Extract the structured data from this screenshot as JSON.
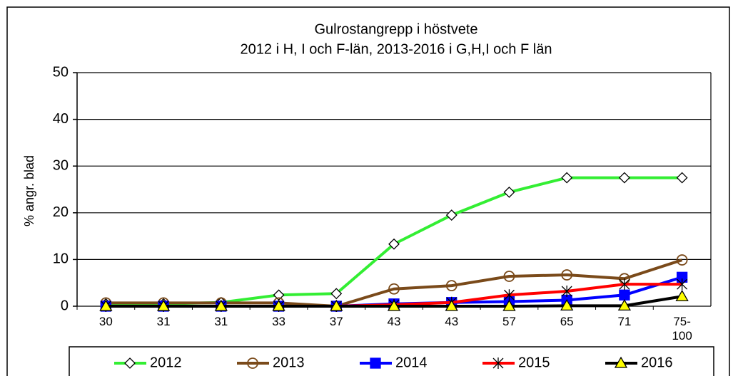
{
  "chart_data": {
    "type": "line",
    "title": "Gulrostangrepp i höstvete",
    "subtitle": "2012 i H, I och F-län, 2013-2016 i G,H,I och F län",
    "ylabel": "% angr. blad",
    "categories": [
      "30",
      "31",
      "31",
      "33",
      "37",
      "43",
      "43",
      "57",
      "65",
      "71",
      "75-100"
    ],
    "series": [
      {
        "name": "2012",
        "color": "#33ee33",
        "marker": "diamond",
        "marker_fill": "#ffffff",
        "marker_stroke": "#000000",
        "values": [
          0.5,
          0.5,
          0.8,
          2.4,
          2.7,
          13.3,
          19.5,
          24.4,
          27.5,
          27.5,
          27.5
        ]
      },
      {
        "name": "2013",
        "color": "#7a4a1a",
        "marker": "circle",
        "marker_fill": "none",
        "marker_stroke": "#7a4a1a",
        "values": [
          0.7,
          0.7,
          0.7,
          0.7,
          0,
          3.7,
          4.4,
          6.4,
          6.7,
          5.9,
          9.9
        ]
      },
      {
        "name": "2014",
        "color": "#0000ff",
        "marker": "square",
        "marker_fill": "#0000ff",
        "marker_stroke": "#0000ff",
        "values": [
          0,
          0,
          0,
          0,
          0,
          0.5,
          0.8,
          1,
          1.3,
          2.4,
          6.2
        ]
      },
      {
        "name": "2015",
        "color": "#ff0000",
        "marker": "star",
        "marker_fill": "none",
        "marker_stroke": "#000000",
        "values": [
          0,
          0,
          0,
          0,
          0,
          0.3,
          0.8,
          2.4,
          3.2,
          4.7,
          4.7
        ]
      },
      {
        "name": "2016",
        "color": "#000000",
        "marker": "triangle",
        "marker_fill": "#ffff00",
        "marker_stroke": "#000000",
        "values": [
          0,
          0,
          0,
          0,
          0,
          0,
          0,
          0,
          0.1,
          0.1,
          2.1
        ]
      }
    ],
    "ylim": [
      0,
      50
    ],
    "yticks": [
      0,
      10,
      20,
      30,
      40,
      50
    ],
    "grid": true,
    "legend": "bottom"
  }
}
